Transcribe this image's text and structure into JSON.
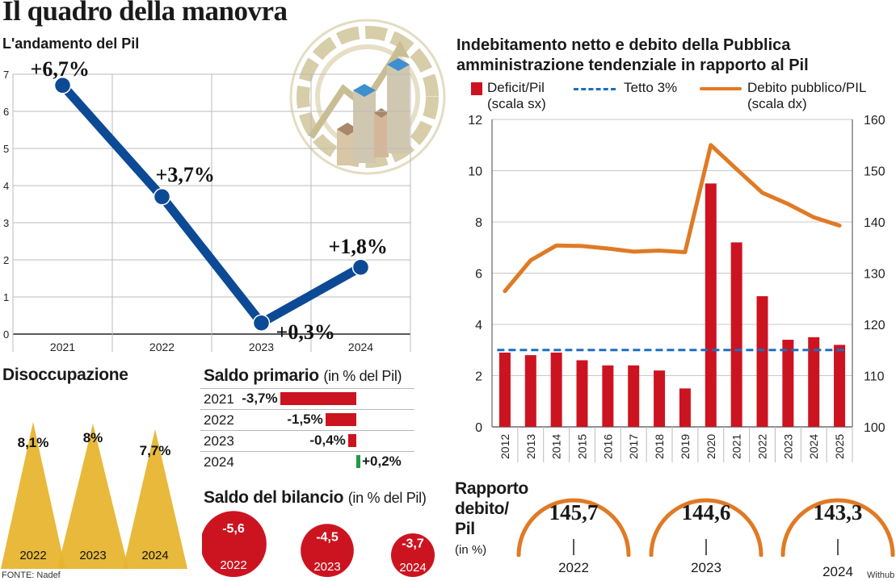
{
  "header": {
    "title": "Il quadro della manovra",
    "source": "FONTE: Nadef",
    "credit": "Withub"
  },
  "pil": {
    "subtitle": "L'andamento del Pil",
    "chart_data": {
      "type": "line",
      "x": [
        "2021",
        "2022",
        "2023",
        "2024"
      ],
      "values": [
        6.7,
        3.7,
        0.3,
        1.8
      ],
      "point_labels": [
        "+6,7%",
        "+3,7%",
        "+0,3%",
        "+1,8%"
      ],
      "ylim": [
        0,
        7
      ],
      "yticks": [
        "0",
        "1",
        "2",
        "3",
        "4",
        "5",
        "6",
        "7"
      ],
      "grid": true,
      "color": "#0d4a96"
    }
  },
  "disoccupazione": {
    "title": "Disoccupazione",
    "chart_data": {
      "type": "bar",
      "categories": [
        "2022",
        "2023",
        "2024"
      ],
      "values": [
        8.1,
        8.0,
        7.7
      ],
      "value_labels": [
        "8,1%",
        "8%",
        "7,7%"
      ],
      "color": "#e6b42c"
    }
  },
  "saldo_primario": {
    "title": "Saldo primario",
    "unit": "(in % del Pil)",
    "chart_data": {
      "type": "bar",
      "categories": [
        "2021",
        "2022",
        "2023",
        "2024"
      ],
      "values": [
        -3.7,
        -1.5,
        -0.4,
        0.2
      ],
      "value_labels": [
        "-3,7%",
        "-1,5%",
        "-0,4%",
        "+0,2%"
      ],
      "negative_color": "#cc1420",
      "positive_color": "#1e9b4a"
    }
  },
  "saldo_bilancio": {
    "title": "Saldo del bilancio",
    "unit": "(in % del Pil)",
    "chart_data": {
      "type": "bubble",
      "categories": [
        "2022",
        "2023",
        "2024"
      ],
      "values": [
        -5.6,
        -4.5,
        -3.7
      ],
      "value_labels": [
        "-5,6",
        "-4,5",
        "-3,7"
      ],
      "color": "#cc1420"
    }
  },
  "indebitamento": {
    "title_line1": "Indebitamento netto e debito della Pubblica",
    "title_line2": "amministrazione tendenziale in rapporto al Pil",
    "legend": {
      "deficit_line1": "Deficit/Pil",
      "deficit_line2": "(scala sx)",
      "tetto": "Tetto 3%",
      "debito_line1": "Debito pubblico/PIL",
      "debito_line2": "(scala dx)"
    },
    "chart_data": {
      "type": "bar",
      "categories": [
        "2012",
        "2013",
        "2014",
        "2015",
        "2016",
        "2017",
        "2018",
        "2019",
        "2020",
        "2021",
        "2022",
        "2023",
        "2024",
        "2025"
      ],
      "series": [
        {
          "name": "Deficit/Pil",
          "axis": "left",
          "type": "bar",
          "color": "#cc1420",
          "values": [
            2.9,
            2.8,
            2.9,
            2.6,
            2.4,
            2.4,
            2.2,
            1.5,
            9.5,
            7.2,
            5.1,
            3.4,
            3.5,
            3.2
          ]
        },
        {
          "name": "Debito pubblico/PIL",
          "axis": "right",
          "type": "line",
          "color": "#e07a24",
          "values": [
            126.5,
            132.5,
            135.4,
            135.3,
            134.8,
            134.2,
            134.4,
            134.1,
            155.0,
            150.3,
            145.7,
            143.5,
            140.9,
            139.3
          ]
        },
        {
          "name": "Tetto 3%",
          "axis": "left",
          "type": "hline",
          "color": "#1a6fc0",
          "value": 3
        }
      ],
      "y_left": {
        "lim": [
          0,
          12
        ],
        "ticks": [
          "0",
          "2",
          "4",
          "6",
          "8",
          "10",
          "12"
        ]
      },
      "y_right": {
        "lim": [
          100,
          160
        ],
        "ticks": [
          "100",
          "110",
          "120",
          "130",
          "140",
          "150",
          "160"
        ]
      },
      "grid": true
    }
  },
  "rapporto": {
    "title_line1": "Rapporto",
    "title_line2": "debito/",
    "title_line3": "Pil",
    "unit": "(in %)",
    "chart_data": {
      "type": "gauge",
      "categories": [
        "2022",
        "2023",
        "2024"
      ],
      "values": [
        145.7,
        144.6,
        143.3
      ],
      "value_labels": [
        "145,7",
        "144,6",
        "143,3"
      ],
      "color": "#e07a24"
    }
  }
}
